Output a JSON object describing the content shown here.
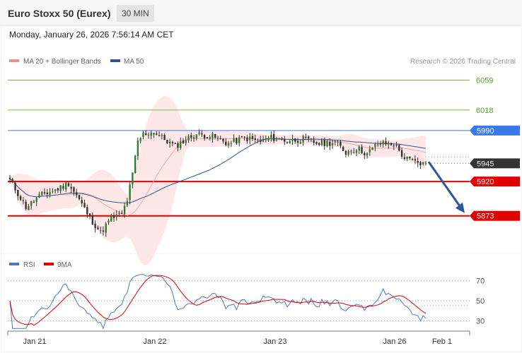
{
  "header": {
    "title": "Euro Stoxx 50 (Eurex)",
    "timeframe": "30 MIN",
    "datetime": "Monday, January 26, 2026 7:56:14 AM CET"
  },
  "chart_data": [
    {
      "type": "candlestick",
      "legend": [
        {
          "label": "MA 20 + Bollinger Bands",
          "color": "#f28b82"
        },
        {
          "label": "MA 50",
          "color": "#2f5597"
        }
      ],
      "credit": "Research © 2026 Trading Central",
      "y_range": [
        5834,
        6076
      ],
      "levels": [
        {
          "value": 6059,
          "label": "6059",
          "color": "#7cb342",
          "style": "thin",
          "tag": false
        },
        {
          "value": 6018,
          "label": "6018",
          "color": "#7cb342",
          "style": "thin",
          "tag": false
        },
        {
          "value": 5990,
          "label": "5990",
          "color": "#3b78e7",
          "style": "thin",
          "tag": true
        },
        {
          "value": 5945,
          "label": "5945",
          "color": "#333333",
          "style": "dotted",
          "tag": true
        },
        {
          "value": 5920,
          "label": "5920",
          "color": "#e10000",
          "style": "thick",
          "tag": true
        },
        {
          "value": 5873,
          "label": "5873",
          "color": "#e10000",
          "style": "thick",
          "tag": true
        }
      ],
      "projection": {
        "from_value": 5947,
        "to_value": 5873
      },
      "anchors": [
        [
          0,
          5922
        ],
        [
          6,
          5885
        ],
        [
          12,
          5902
        ],
        [
          18,
          5910
        ],
        [
          22,
          5918
        ],
        [
          26,
          5895
        ],
        [
          30,
          5870
        ],
        [
          34,
          5850
        ],
        [
          38,
          5870
        ],
        [
          42,
          5875
        ],
        [
          44,
          5895
        ],
        [
          46,
          5930
        ],
        [
          48,
          5975
        ],
        [
          50,
          5985
        ],
        [
          54,
          5988
        ],
        [
          58,
          5978
        ],
        [
          62,
          5968
        ],
        [
          66,
          5978
        ],
        [
          70,
          5985
        ],
        [
          76,
          5982
        ],
        [
          82,
          5972
        ],
        [
          88,
          5980
        ],
        [
          94,
          5975
        ],
        [
          98,
          5980
        ],
        [
          104,
          5976
        ],
        [
          110,
          5978
        ],
        [
          116,
          5972
        ],
        [
          122,
          5974
        ],
        [
          126,
          5960
        ],
        [
          130,
          5966
        ],
        [
          134,
          5958
        ],
        [
          138,
          5972
        ],
        [
          144,
          5972
        ],
        [
          148,
          5952
        ],
        [
          152,
          5946
        ],
        [
          156,
          5944
        ]
      ],
      "n_candles": 157
    },
    {
      "type": "line",
      "legend": [
        {
          "label": "RSI",
          "color": "#4a78d0"
        },
        {
          "label": "9MA",
          "color": "#e10000"
        }
      ],
      "y_range": [
        22,
        78
      ],
      "ticks": [
        70,
        50,
        30
      ],
      "x_labels": [
        "Jan 21",
        "Jan 22",
        "Jan 23",
        "Jan 26",
        "Feb 1"
      ]
    }
  ]
}
